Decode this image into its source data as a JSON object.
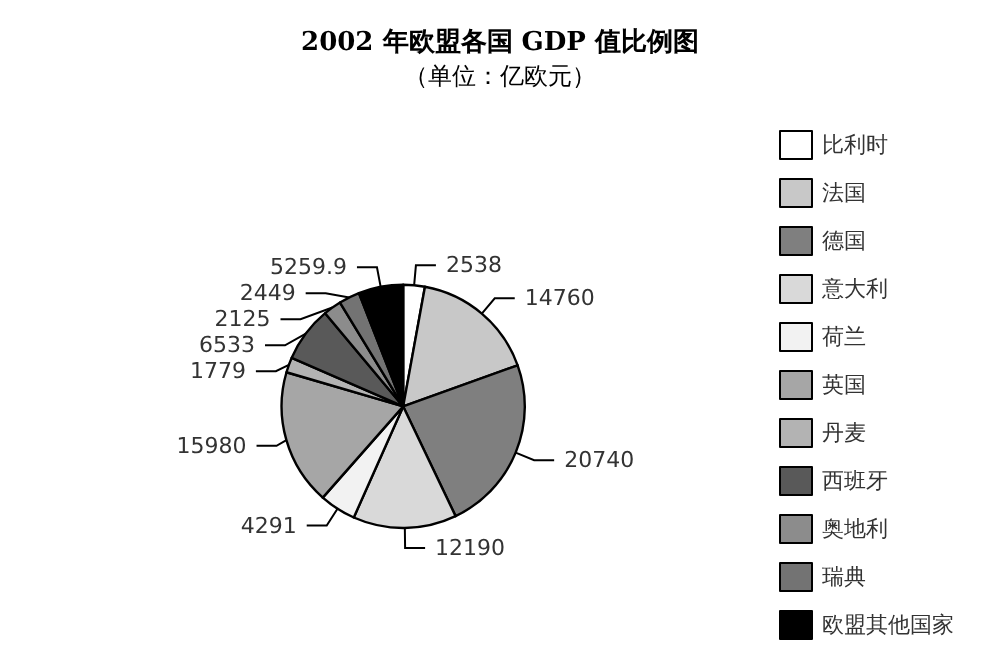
{
  "chart_data": {
    "type": "pie",
    "title": "2002 年欧盟各国 GDP 值比例图",
    "subtitle": "（单位：亿欧元）",
    "categories": [
      "比利时",
      "法国",
      "德国",
      "意大利",
      "荷兰",
      "英国",
      "丹麦",
      "西班牙",
      "奥地利",
      "瑞典",
      "欧盟其他国家"
    ],
    "values": [
      2538,
      14760,
      20740,
      12190,
      4291,
      15980,
      1779,
      6533,
      2125,
      2449,
      5259.9
    ],
    "colors": [
      "#ffffff",
      "#c8c8c8",
      "#7f7f7f",
      "#d9d9d9",
      "#f2f2f2",
      "#a6a6a6",
      "#b3b3b3",
      "#595959",
      "#8c8c8c",
      "#737373",
      "#000000"
    ],
    "data_labels": true,
    "legend": "right"
  }
}
